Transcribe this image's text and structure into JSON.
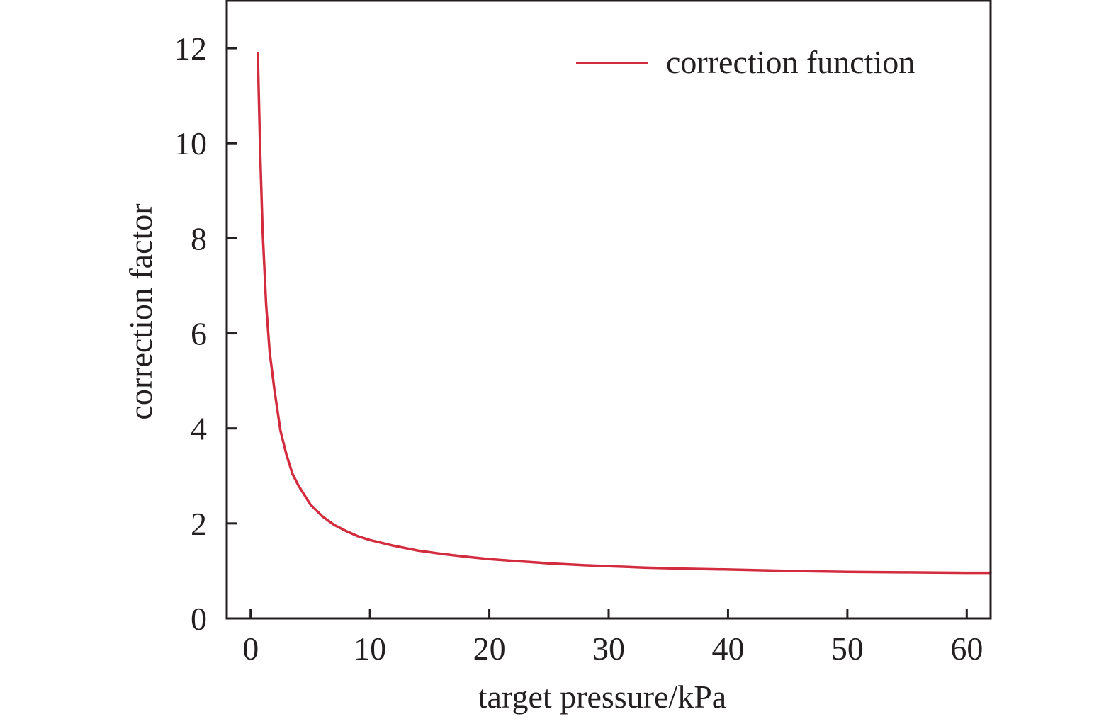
{
  "chart_data": {
    "type": "line",
    "title": "",
    "xlabel": "target pressure/kPa",
    "ylabel": "correction factor",
    "xlim": [
      -2,
      62
    ],
    "ylim": [
      0,
      13
    ],
    "xticks": [
      0,
      10,
      20,
      30,
      40,
      50,
      60
    ],
    "yticks": [
      0,
      2,
      4,
      6,
      8,
      10,
      12
    ],
    "grid": false,
    "legend_position": "top-right",
    "line_color": "#d22c3e",
    "series": [
      {
        "name": "correction function",
        "x": [
          0.6,
          0.8,
          1.0,
          1.3,
          1.6,
          2.0,
          2.5,
          3.0,
          3.5,
          4.0,
          5.0,
          6.0,
          7.0,
          8.0,
          9.0,
          10.0,
          12.0,
          14.0,
          16.0,
          18.0,
          20.0,
          22.0,
          25.0,
          28.0,
          30.0,
          33.0,
          36.0,
          40.0,
          45.0,
          50.0,
          55.0,
          60.0,
          62.0
        ],
        "y": [
          11.9,
          9.8,
          8.2,
          6.6,
          5.6,
          4.8,
          3.95,
          3.45,
          3.05,
          2.8,
          2.4,
          2.15,
          1.97,
          1.84,
          1.73,
          1.65,
          1.53,
          1.43,
          1.36,
          1.3,
          1.25,
          1.21,
          1.16,
          1.12,
          1.1,
          1.07,
          1.05,
          1.03,
          1.0,
          0.98,
          0.97,
          0.96,
          0.96
        ]
      }
    ]
  }
}
